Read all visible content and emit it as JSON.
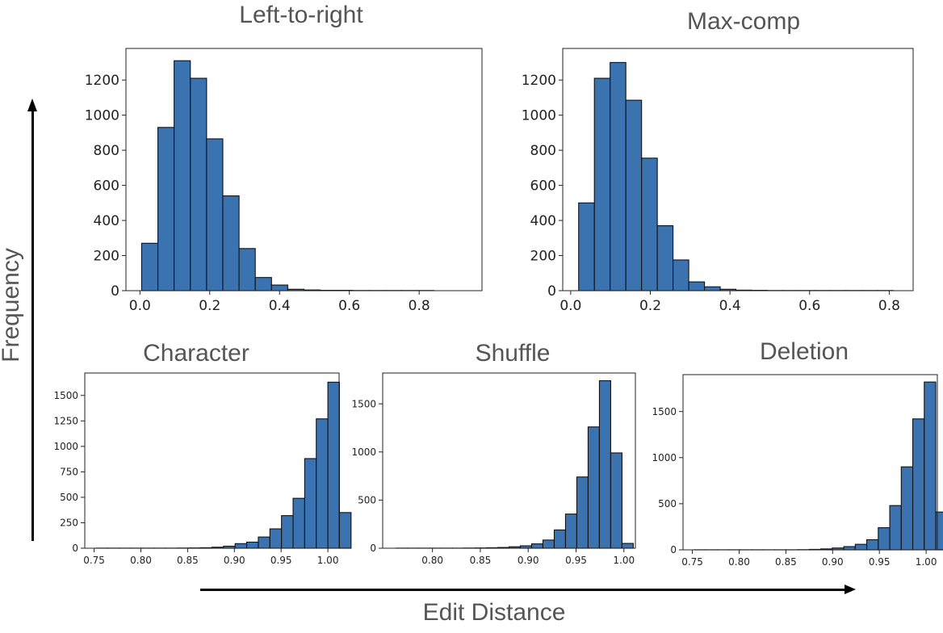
{
  "figure": {
    "ylabel": "Frequency",
    "xlabel": "Edit Distance"
  },
  "chart_data": [
    {
      "id": "left-to-right",
      "type": "bar",
      "title": "Left-to-right",
      "bin_start": 0.005,
      "bin_width": 0.0465,
      "values": [
        270,
        930,
        1310,
        1210,
        865,
        540,
        240,
        75,
        32,
        8,
        4,
        2,
        2,
        1,
        1,
        1,
        1,
        1
      ],
      "xlim": [
        -0.04,
        0.98
      ],
      "ylim": [
        0,
        1380
      ],
      "xticks": [
        0.0,
        0.2,
        0.4,
        0.6,
        0.8
      ],
      "xtick_labels": [
        "0.0",
        "0.2",
        "0.4",
        "0.6",
        "0.8"
      ],
      "yticks": [
        0,
        200,
        400,
        600,
        800,
        1000,
        1200
      ],
      "ytick_labels": [
        "0",
        "200",
        "400",
        "600",
        "800",
        "1000",
        "1200"
      ]
    },
    {
      "id": "max-comp",
      "type": "bar",
      "title": "Max-comp",
      "bin_start": 0.02,
      "bin_width": 0.0395,
      "values": [
        500,
        1210,
        1300,
        1085,
        755,
        370,
        175,
        50,
        22,
        8,
        3,
        2,
        1,
        1,
        1,
        1,
        1,
        1,
        1,
        1
      ],
      "xlim": [
        -0.02,
        0.86
      ],
      "ylim": [
        0,
        1380
      ],
      "xticks": [
        0.0,
        0.2,
        0.4,
        0.6,
        0.8
      ],
      "xtick_labels": [
        "0.0",
        "0.2",
        "0.4",
        "0.6",
        "0.8"
      ],
      "yticks": [
        0,
        200,
        400,
        600,
        800,
        1000,
        1200
      ],
      "ytick_labels": [
        "0",
        "200",
        "400",
        "600",
        "800",
        "1000",
        "1200"
      ]
    },
    {
      "id": "character",
      "type": "bar",
      "title": "Character",
      "bin_start": 0.752,
      "bin_width": 0.0124,
      "values": [
        1,
        1,
        1,
        1,
        1,
        1,
        1,
        2,
        3,
        5,
        10,
        20,
        45,
        60,
        110,
        190,
        320,
        490,
        880,
        1270,
        1630,
        350
      ],
      "xlim": [
        0.74,
        1.012
      ],
      "ylim": [
        0,
        1720
      ],
      "xticks": [
        0.75,
        0.8,
        0.85,
        0.9,
        0.95,
        1.0
      ],
      "xtick_labels": [
        "0.75",
        "0.80",
        "0.85",
        "0.90",
        "0.95",
        "1.00"
      ],
      "yticks": [
        0,
        250,
        500,
        750,
        1000,
        1250,
        1500
      ],
      "ytick_labels": [
        "0",
        "250",
        "500",
        "750",
        "1000",
        "1250",
        "1500"
      ]
    },
    {
      "id": "shuffle",
      "type": "bar",
      "title": "Shuffle",
      "bin_start": 0.762,
      "bin_width": 0.0118,
      "values": [
        1,
        1,
        1,
        1,
        1,
        1,
        2,
        3,
        5,
        8,
        15,
        25,
        45,
        85,
        190,
        355,
        740,
        1260,
        1740,
        990,
        50
      ],
      "xlim": [
        0.748,
        1.012
      ],
      "ylim": [
        0,
        1820
      ],
      "xticks": [
        0.8,
        0.85,
        0.9,
        0.95,
        1.0
      ],
      "xtick_labels": [
        "0.80",
        "0.85",
        "0.90",
        "0.95",
        "1.00"
      ],
      "yticks": [
        0,
        500,
        1000,
        1500
      ],
      "ytick_labels": [
        "0",
        "500",
        "1000",
        "1500"
      ]
    },
    {
      "id": "deletion",
      "type": "bar",
      "title": "Deletion",
      "bin_start": 0.752,
      "bin_width": 0.0123,
      "values": [
        1,
        1,
        1,
        1,
        1,
        1,
        1,
        1,
        1,
        2,
        5,
        10,
        20,
        35,
        60,
        110,
        240,
        480,
        900,
        1420,
        1820,
        410
      ],
      "xlim": [
        0.74,
        1.012
      ],
      "ylim": [
        0,
        1900
      ],
      "xticks": [
        0.75,
        0.8,
        0.85,
        0.9,
        0.95,
        1.0
      ],
      "xtick_labels": [
        "0.75",
        "0.80",
        "0.85",
        "0.90",
        "0.95",
        "1.00"
      ],
      "yticks": [
        0,
        500,
        1000,
        1500
      ],
      "ytick_labels": [
        "0",
        "500",
        "1000",
        "1500"
      ]
    }
  ],
  "style": {
    "bar_fill": "#3b72b0",
    "bar_edge": "#111111",
    "text_color": "#555555"
  }
}
